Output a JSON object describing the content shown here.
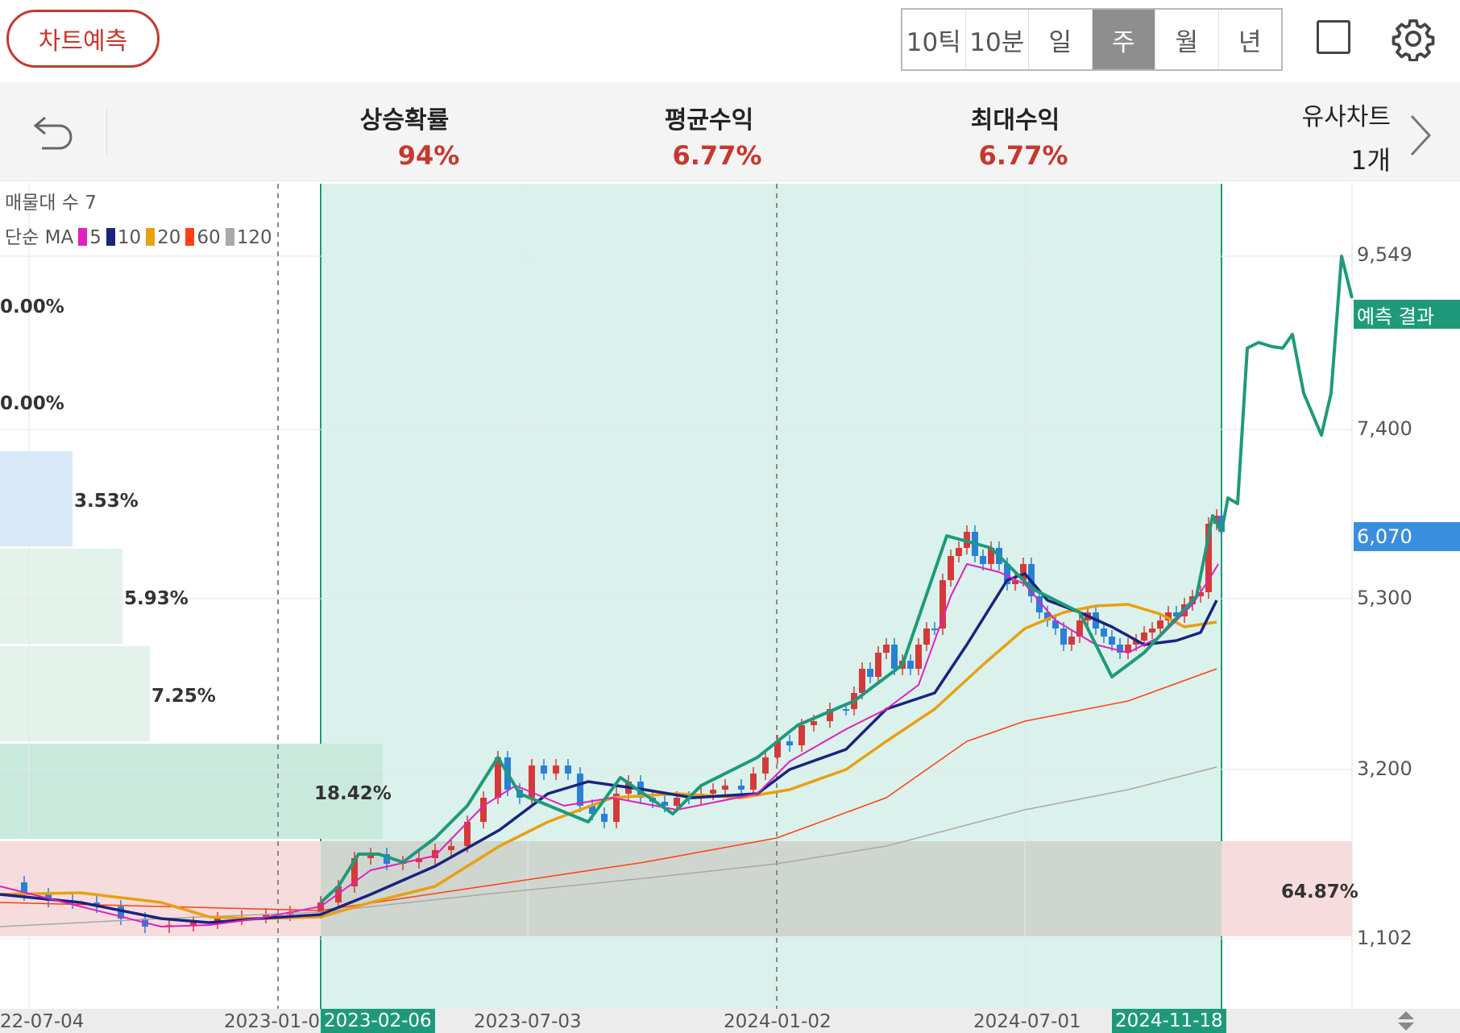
{
  "header": {
    "predict_button": "차트예측",
    "periods": [
      "10틱",
      "10분",
      "일",
      "주",
      "월",
      "년"
    ],
    "active_period": "주"
  },
  "stats": {
    "rise_probability": {
      "label": "상승확률",
      "value": "94%"
    },
    "avg_return": {
      "label": "평균수익",
      "value": "6.77%"
    },
    "max_return": {
      "label": "최대수익",
      "value": "6.77%"
    },
    "similar_charts": {
      "label": "유사차트",
      "value": "1개"
    }
  },
  "legend": {
    "volume_profile": "매물대 수 7",
    "ma_label": "단순 MA",
    "ma": [
      {
        "period": "5",
        "color": "#e020c0"
      },
      {
        "period": "10",
        "color": "#1a237e"
      },
      {
        "period": "20",
        "color": "#e8a010"
      },
      {
        "period": "60",
        "color": "#ff4010"
      },
      {
        "period": "120",
        "color": "#a8a8a8"
      }
    ]
  },
  "volume_profile": [
    {
      "pct": "0.00%",
      "color": "#1e8a5a"
    },
    {
      "pct": "0.00%",
      "color": "#1e8a5a"
    },
    {
      "pct": "3.53%",
      "color": "#2a78c8"
    },
    {
      "pct": "5.93%",
      "color": "#1e8a5a"
    },
    {
      "pct": "7.25%",
      "color": "#1e8a5a"
    },
    {
      "pct": "18.42%",
      "color": "#1e8a5a"
    },
    {
      "pct": "64.87%",
      "color": "#c8372d"
    }
  ],
  "y_axis": [
    "9,549",
    "7,400",
    "5,300",
    "3,200",
    "1,102"
  ],
  "current_price": "6,070",
  "prediction_tag": "예측 결과",
  "x_axis": [
    "22-07-04",
    "2023-01-0",
    "2023-07-03",
    "2024-01-02",
    "2024-07-01"
  ],
  "x_highlight": [
    "2023-02-06",
    "2024-11-18"
  ],
  "colors": {
    "up": "#d43a3a",
    "down": "#2a7fd8",
    "prediction": "#1e9a7a",
    "current_price_tag": "#3a8ee0",
    "brand_red": "#c8372d"
  }
}
